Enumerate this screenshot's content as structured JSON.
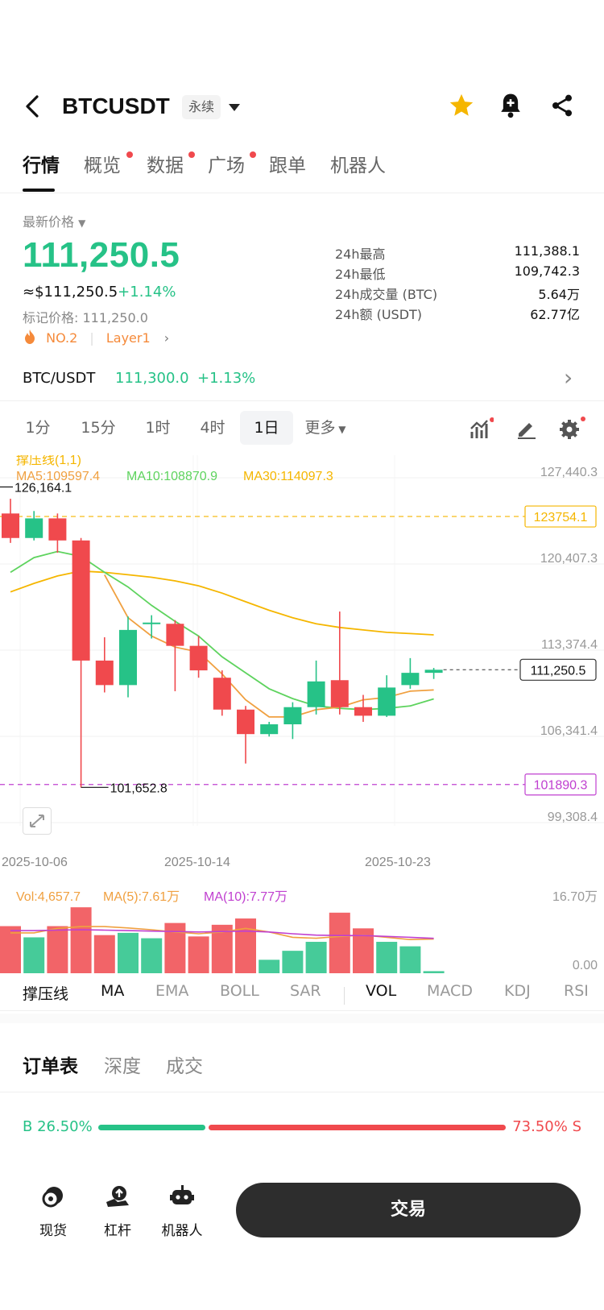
{
  "header": {
    "symbol": "BTCUSDT",
    "contract_type": "永续",
    "icons": [
      "back-arrow-icon",
      "chevron-down-icon",
      "star-icon",
      "bell-plus-icon",
      "share-icon"
    ],
    "star_color": "#f5b600"
  },
  "tabs": [
    {
      "label": "行情",
      "active": true,
      "dot": false
    },
    {
      "label": "概览",
      "active": false,
      "dot": true
    },
    {
      "label": "数据",
      "active": false,
      "dot": true
    },
    {
      "label": "广场",
      "active": false,
      "dot": true
    },
    {
      "label": "跟单",
      "active": false,
      "dot": false
    },
    {
      "label": "机器人",
      "active": false,
      "dot": false
    }
  ],
  "price_section": {
    "label": "最新价格",
    "price": "111,250.5",
    "usd_equiv": "≈$111,250.5",
    "change": "+1.14%",
    "mark_price": "标记价格: 111,250.0",
    "rank": "NO.2",
    "tag": "Layer1",
    "stats": [
      {
        "key": "24h最高",
        "value": "111,388.1"
      },
      {
        "key": "24h最低",
        "value": "109,742.3"
      },
      {
        "key": "24h成交量 (BTC)",
        "value": "5.64万"
      },
      {
        "key": "24h额 (USDT)",
        "value": "62.77亿"
      }
    ]
  },
  "spot_row": {
    "pair": "BTC/USDT",
    "price": "111,300.0",
    "change": "+1.13%"
  },
  "intervals": [
    {
      "label": "1分",
      "active": false
    },
    {
      "label": "15分",
      "active": false
    },
    {
      "label": "1时",
      "active": false
    },
    {
      "label": "4时",
      "active": false
    },
    {
      "label": "1日",
      "active": true
    },
    {
      "label": "更多",
      "active": false
    }
  ],
  "chart_tools": [
    "indicator-icon",
    "pencil-icon",
    "gear-icon"
  ],
  "chart_data": {
    "type": "candlestick",
    "indicator_title": "撑压线(1,1)",
    "ma_labels": [
      {
        "text": "MA5:109597.4",
        "color": "#f0a040"
      },
      {
        "text": "MA10:108870.9",
        "color": "#5ed35e"
      },
      {
        "text": "MA30:114097.3",
        "color": "#f5b600"
      }
    ],
    "y_ticks": [
      "127,440.3",
      "120,407.3",
      "113,374.4",
      "106,341.4",
      "99,308.4"
    ],
    "y_tick_values": [
      127440.3,
      120407.3,
      113374.4,
      106341.4,
      99308.4
    ],
    "x_ticks": [
      "2025-10-06",
      "2025-10-14",
      "2025-10-23"
    ],
    "high_label": "126,164.1",
    "high_value": 126164.1,
    "low_label": "101,652.8",
    "low_value": 101652.8,
    "resistance": {
      "label": "123754.1",
      "value": 123754.1,
      "color": "#f5b600"
    },
    "support": {
      "label": "101890.3",
      "value": 101890.3,
      "color": "#c040d0"
    },
    "current": {
      "label": "111,250.5",
      "value": 111250.5
    },
    "candles": [
      {
        "o": 124000,
        "h": 125200,
        "l": 121600,
        "c": 122000
      },
      {
        "o": 122000,
        "h": 124200,
        "l": 121800,
        "c": 123600
      },
      {
        "o": 123600,
        "h": 124000,
        "l": 120800,
        "c": 121800
      },
      {
        "o": 121800,
        "h": 122000,
        "l": 101652.8,
        "c": 112000
      },
      {
        "o": 112000,
        "h": 113900,
        "l": 109400,
        "c": 110000
      },
      {
        "o": 110000,
        "h": 115600,
        "l": 109000,
        "c": 114500
      },
      {
        "o": 115000,
        "h": 115700,
        "l": 113800,
        "c": 115100
      },
      {
        "o": 115000,
        "h": 115300,
        "l": 109500,
        "c": 113200
      },
      {
        "o": 113200,
        "h": 114000,
        "l": 110600,
        "c": 111200
      },
      {
        "o": 110600,
        "h": 111200,
        "l": 107500,
        "c": 108000
      },
      {
        "o": 108000,
        "h": 108300,
        "l": 103600,
        "c": 106000
      },
      {
        "o": 106000,
        "h": 107000,
        "l": 105800,
        "c": 106800
      },
      {
        "o": 106800,
        "h": 108600,
        "l": 105600,
        "c": 108200
      },
      {
        "o": 108200,
        "h": 112000,
        "l": 107600,
        "c": 110300
      },
      {
        "o": 110400,
        "h": 116000,
        "l": 107600,
        "c": 108200
      },
      {
        "o": 108200,
        "h": 109200,
        "l": 107000,
        "c": 107500
      },
      {
        "o": 107500,
        "h": 110800,
        "l": 107400,
        "c": 109800
      },
      {
        "o": 110000,
        "h": 112200,
        "l": 109700,
        "c": 111000
      },
      {
        "o": 111000,
        "h": 111400,
        "l": 110500,
        "c": 111250.5
      }
    ],
    "ma5": [
      null,
      null,
      null,
      null,
      119000,
      115500,
      114000,
      113100,
      112700,
      110900,
      108800,
      107400,
      107400,
      108000,
      108200,
      108800,
      109000,
      109500,
      109600
    ],
    "ma10": [
      119200,
      120400,
      120900,
      120500,
      119200,
      118000,
      116500,
      115200,
      114000,
      112300,
      111000,
      109700,
      108900,
      108300,
      108100,
      108000,
      108100,
      108300,
      108870.9
    ],
    "ma30": [
      117600,
      118300,
      118900,
      119300,
      119200,
      119000,
      118800,
      118500,
      118100,
      117500,
      116800,
      116100,
      115500,
      115000,
      114700,
      114500,
      114300,
      114200,
      114097.3
    ],
    "volume": {
      "title": "Vol:4,657.7",
      "ma5_label": "MA(5):7.61万",
      "ma10_label": "MA(10):7.77万",
      "y_top": "16.70万",
      "y_bottom": "0.00",
      "max": 167000,
      "bars": [
        105000,
        80000,
        105000,
        147000,
        85000,
        90000,
        78000,
        112000,
        82000,
        108000,
        122000,
        30000,
        50000,
        70000,
        135000,
        100000,
        70000,
        60000,
        4657.7
      ],
      "ma5": [
        90000,
        90000,
        100000,
        104000,
        104000,
        101000,
        97000,
        92000,
        88000,
        92000,
        100000,
        92000,
        80000,
        78000,
        82000,
        85000,
        80000,
        75000,
        76100
      ],
      "ma10": [
        95000,
        95000,
        96000,
        97000,
        96000,
        95000,
        94000,
        93000,
        92000,
        93000,
        94000,
        92000,
        88000,
        85000,
        84000,
        84000,
        82000,
        80000,
        77700
      ]
    }
  },
  "indicators": [
    {
      "label": "撑压线",
      "active": true
    },
    {
      "label": "MA",
      "active": true
    },
    {
      "label": "EMA",
      "active": false
    },
    {
      "label": "BOLL",
      "active": false
    },
    {
      "label": "SAR",
      "active": false
    },
    {
      "label": "VOL",
      "active": true
    },
    {
      "label": "MACD",
      "active": false
    },
    {
      "label": "KDJ",
      "active": false
    },
    {
      "label": "RSI",
      "active": false
    }
  ],
  "orderbook": {
    "tabs": [
      {
        "label": "订单表",
        "active": true
      },
      {
        "label": "深度",
        "active": false
      },
      {
        "label": "成交",
        "active": false
      }
    ],
    "buy_label": "B 26.50%",
    "sell_label": "73.50% S",
    "buy_ratio": 0.265
  },
  "bottom_nav": [
    {
      "label": "现货",
      "icon": "spot-icon"
    },
    {
      "label": "杠杆",
      "icon": "margin-icon"
    },
    {
      "label": "机器人",
      "icon": "robot-icon"
    }
  ],
  "trade_button": "交易",
  "colors": {
    "up": "#26c287",
    "down": "#f0494d"
  }
}
